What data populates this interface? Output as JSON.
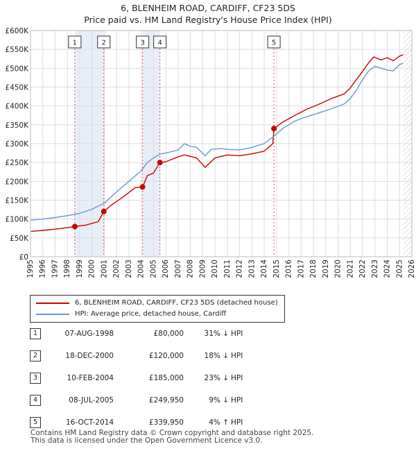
{
  "title_line1": "6, BLENHEIM ROAD, CARDIFF, CF23 5DS",
  "title_line2": "Price paid vs. HM Land Registry's House Price Index (HPI)",
  "legend": {
    "property_label": "6, BLENHEIM ROAD, CARDIFF, CF23 5DS (detached house)",
    "hpi_label": "HPI: Average price, detached house, Cardiff"
  },
  "sales": [
    {
      "num": "1",
      "date": "07-AUG-1998",
      "price": "£80,000",
      "pct": "31% ↓",
      "dir": "HPI"
    },
    {
      "num": "2",
      "date": "18-DEC-2000",
      "price": "£120,000",
      "pct": "18% ↓",
      "dir": "HPI"
    },
    {
      "num": "3",
      "date": "10-FEB-2004",
      "price": "£185,000",
      "pct": "23% ↓",
      "dir": "HPI"
    },
    {
      "num": "4",
      "date": "08-JUL-2005",
      "price": "£249,950",
      "pct": "9% ↓",
      "dir": "HPI"
    },
    {
      "num": "5",
      "date": "16-OCT-2014",
      "price": "£339,950",
      "pct": "4% ↑",
      "dir": "HPI"
    }
  ],
  "footer_line1": "Contains HM Land Registry data © Crown copyright and database right 2025.",
  "footer_line2": "This data is licensed under the Open Government Licence v3.0.",
  "colors": {
    "property": "#cc0000",
    "hpi": "#6699cc",
    "shade": "#e8eef8",
    "grid": "#dddddd"
  },
  "chart_data": {
    "type": "line",
    "x_range": [
      1995,
      2026
    ],
    "ylim": [
      0,
      600000
    ],
    "y_ticks": [
      0,
      50000,
      100000,
      150000,
      200000,
      250000,
      300000,
      350000,
      400000,
      450000,
      500000,
      550000,
      600000
    ],
    "y_tick_labels": [
      "£0",
      "£50K",
      "£100K",
      "£150K",
      "£200K",
      "£250K",
      "£300K",
      "£350K",
      "£400K",
      "£450K",
      "£500K",
      "£550K",
      "£600K"
    ],
    "x_ticks": [
      1995,
      1996,
      1997,
      1998,
      1999,
      2000,
      2001,
      2002,
      2003,
      2004,
      2005,
      2006,
      2007,
      2008,
      2009,
      2010,
      2011,
      2012,
      2013,
      2014,
      2015,
      2016,
      2017,
      2018,
      2019,
      2020,
      2021,
      2022,
      2023,
      2024,
      2025,
      2026
    ],
    "x_tick_labels": [
      "1995",
      "1996",
      "1997",
      "1998",
      "1999",
      "2000",
      "2001",
      "2002",
      "2003",
      "2004",
      "2005",
      "2006",
      "2007",
      "2008",
      "2009",
      "2010",
      "2011",
      "2012",
      "2013",
      "2014",
      "2015",
      "2016",
      "2017",
      "2018",
      "2019",
      "2020",
      "2021",
      "2022",
      "2023",
      "2024",
      "2025",
      "2026"
    ],
    "hatch_from": 2025.3,
    "shaded_spans": [
      [
        1998.6,
        2000.96
      ],
      [
        2004.11,
        2005.52
      ]
    ],
    "markers": [
      {
        "label": "1",
        "x": 1998.6,
        "y": 80000
      },
      {
        "label": "2",
        "x": 2000.96,
        "y": 120000
      },
      {
        "label": "3",
        "x": 2004.11,
        "y": 185000
      },
      {
        "label": "4",
        "x": 2005.52,
        "y": 249950
      },
      {
        "label": "5",
        "x": 2014.79,
        "y": 339950
      }
    ],
    "series": [
      {
        "name": "6, BLENHEIM ROAD, CARDIFF, CF23 5DS (detached house)",
        "x": [
          1995.0,
          1996.0,
          1997.0,
          1998.0,
          1998.6,
          1999.5,
          2000.5,
          2000.96,
          2001.5,
          2002.5,
          2003.5,
          2004.11,
          2004.5,
          2005.0,
          2005.52,
          2006.0,
          2007.0,
          2007.5,
          2008.5,
          2009.2,
          2010.0,
          2011.0,
          2012.0,
          2013.0,
          2014.0,
          2014.7,
          2014.79,
          2015.5,
          2016.5,
          2017.5,
          2018.5,
          2019.5,
          2020.5,
          2021.0,
          2021.5,
          2022.0,
          2022.5,
          2022.9,
          2023.5,
          2024.0,
          2024.5,
          2025.0,
          2025.3
        ],
        "y": [
          67000,
          70000,
          73000,
          77000,
          80000,
          84000,
          93000,
          120000,
          135000,
          158000,
          183000,
          185000,
          215000,
          222000,
          249950,
          252000,
          265000,
          270000,
          262000,
          237000,
          262000,
          270000,
          268000,
          273000,
          280000,
          300000,
          339950,
          357000,
          375000,
          392000,
          405000,
          420000,
          432000,
          448000,
          470000,
          492000,
          515000,
          530000,
          522000,
          528000,
          520000,
          532000,
          536000
        ]
      },
      {
        "name": "HPI: Average price, detached house, Cardiff",
        "x": [
          1995.0,
          1996.0,
          1997.0,
          1998.0,
          1999.0,
          2000.0,
          2001.0,
          2002.0,
          2003.0,
          2004.0,
          2004.5,
          2005.0,
          2005.5,
          2006.0,
          2007.0,
          2007.5,
          2008.0,
          2008.5,
          2009.2,
          2009.7,
          2010.5,
          2011.0,
          2012.0,
          2013.0,
          2014.0,
          2014.8,
          2015.5,
          2016.5,
          2017.5,
          2018.5,
          2019.5,
          2020.5,
          2021.0,
          2021.5,
          2022.0,
          2022.5,
          2023.0,
          2023.5,
          2024.0,
          2024.5,
          2025.0,
          2025.3
        ],
        "y": [
          97000,
          100000,
          104000,
          109000,
          115000,
          126000,
          142000,
          172000,
          200000,
          228000,
          250000,
          262000,
          272000,
          275000,
          283000,
          300000,
          293000,
          290000,
          268000,
          285000,
          287000,
          285000,
          283000,
          290000,
          300000,
          320000,
          340000,
          360000,
          372000,
          382000,
          393000,
          405000,
          420000,
          442000,
          470000,
          493000,
          505000,
          500000,
          495000,
          493000,
          510000,
          513000
        ]
      }
    ]
  }
}
